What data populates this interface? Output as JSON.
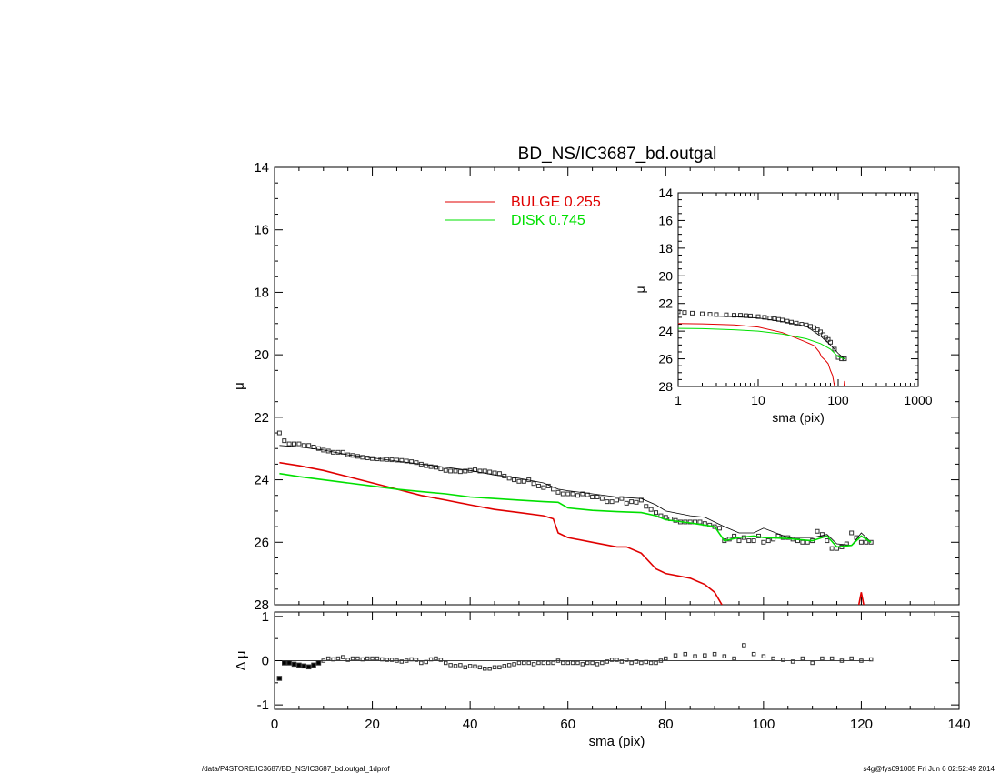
{
  "footer": {
    "left": "/data/P4STORE/IC3687/BD_NS/IC3687_bd.outgal_1dprof",
    "right": "s4g@fys091005  Fri Jun  6 02:52:49 2014"
  },
  "colors": {
    "bulge": "#e00000",
    "disk": "#00e000",
    "model": "#000000",
    "data": "#333333"
  },
  "chart_data": [
    {
      "type": "line",
      "panel": "main",
      "title": "BD_NS/IC3687_bd.outgal",
      "xlabel": "",
      "ylabel": "μ",
      "xlim": [
        0,
        140
      ],
      "ylim": [
        28,
        14
      ],
      "y_inverted": true,
      "y_ticks": [
        14,
        16,
        18,
        20,
        22,
        24,
        26,
        28
      ],
      "legend": [
        {
          "name": "BULGE",
          "value": "0.255",
          "color": "#e00000"
        },
        {
          "name": "DISK",
          "value": "0.745",
          "color": "#00e000"
        }
      ],
      "legend_position": "top-center",
      "series": [
        {
          "name": "data",
          "style": "squares",
          "x": [
            1,
            2,
            3,
            4,
            5,
            6,
            7,
            8,
            9,
            10,
            11,
            12,
            13,
            14,
            15,
            16,
            17,
            18,
            19,
            20,
            21,
            22,
            23,
            24,
            25,
            26,
            27,
            28,
            29,
            30,
            31,
            32,
            33,
            34,
            35,
            36,
            37,
            38,
            39,
            40,
            41,
            42,
            43,
            44,
            45,
            46,
            47,
            48,
            49,
            50,
            51,
            52,
            53,
            54,
            55,
            56,
            57,
            58,
            59,
            60,
            61,
            62,
            63,
            64,
            65,
            66,
            67,
            68,
            69,
            70,
            71,
            72,
            73,
            74,
            75,
            76,
            77,
            78,
            79,
            80,
            81,
            82,
            83,
            84,
            85,
            86,
            87,
            88,
            89,
            90,
            91,
            92,
            93,
            94,
            95,
            96,
            97,
            98,
            99,
            100,
            101,
            102,
            103,
            104,
            105,
            106,
            107,
            108,
            109,
            110,
            111,
            112,
            113,
            114,
            115,
            116,
            117,
            118,
            119,
            120,
            121,
            122
          ],
          "y": [
            22.5,
            22.75,
            22.85,
            22.85,
            22.85,
            22.9,
            22.9,
            22.95,
            23.0,
            23.05,
            23.08,
            23.12,
            23.12,
            23.12,
            23.2,
            23.22,
            23.25,
            23.28,
            23.3,
            23.32,
            23.33,
            23.34,
            23.35,
            23.36,
            23.37,
            23.38,
            23.4,
            23.42,
            23.45,
            23.5,
            23.55,
            23.58,
            23.6,
            23.65,
            23.7,
            23.72,
            23.72,
            23.74,
            23.72,
            23.7,
            23.68,
            23.72,
            23.72,
            23.75,
            23.78,
            23.8,
            23.88,
            23.95,
            24.0,
            24.05,
            24.05,
            24.0,
            24.12,
            24.2,
            24.25,
            24.2,
            24.3,
            24.4,
            24.45,
            24.45,
            24.45,
            24.5,
            24.45,
            24.48,
            24.55,
            24.55,
            24.6,
            24.7,
            24.7,
            24.65,
            24.6,
            24.75,
            24.7,
            24.72,
            24.65,
            24.85,
            24.95,
            25.05,
            25.15,
            25.2,
            25.25,
            25.3,
            25.35,
            25.35,
            25.35,
            25.35,
            25.35,
            25.4,
            25.45,
            25.5,
            25.55,
            25.95,
            25.9,
            25.8,
            25.95,
            25.85,
            25.95,
            25.95,
            25.8,
            26.0,
            25.95,
            25.9,
            25.8,
            25.85,
            25.85,
            25.9,
            25.95,
            26.0,
            26.0,
            25.95,
            25.65,
            25.75,
            25.95,
            26.2,
            26.2,
            26.15,
            26.05,
            25.7,
            25.85,
            26.0,
            26.0,
            26.0
          ]
        },
        {
          "name": "model",
          "color": "#000000",
          "x": [
            1,
            5,
            10,
            15,
            20,
            25,
            30,
            35,
            40,
            45,
            50,
            55,
            58,
            60,
            65,
            70,
            75,
            78,
            80,
            85,
            88,
            90,
            92,
            95,
            98,
            100,
            105,
            110,
            113,
            115,
            118,
            120,
            122
          ],
          "y": [
            22.9,
            22.95,
            23.05,
            23.2,
            23.3,
            23.4,
            23.5,
            23.6,
            23.7,
            23.85,
            23.95,
            24.1,
            24.3,
            24.35,
            24.45,
            24.55,
            24.6,
            24.8,
            25.0,
            25.15,
            25.2,
            25.35,
            25.5,
            25.7,
            25.7,
            25.55,
            25.85,
            25.85,
            25.75,
            26.05,
            26.1,
            25.7,
            26.0
          ]
        },
        {
          "name": "BULGE",
          "color": "#e00000",
          "x": [
            1,
            5,
            10,
            15,
            20,
            25,
            30,
            35,
            40,
            45,
            50,
            55,
            57,
            58,
            60,
            65,
            70,
            72,
            75,
            78,
            80,
            85,
            88,
            90,
            91.5
          ],
          "y": [
            23.45,
            23.55,
            23.7,
            23.9,
            24.1,
            24.3,
            24.5,
            24.65,
            24.8,
            24.95,
            25.05,
            25.15,
            25.25,
            25.7,
            25.85,
            26.0,
            26.15,
            26.15,
            26.35,
            26.85,
            27.0,
            27.15,
            27.35,
            27.6,
            28.0
          ]
        },
        {
          "name": "BULGE-tail",
          "color": "#e00000",
          "x": [
            119.5,
            120,
            120.5
          ],
          "y": [
            28.0,
            27.6,
            28.0
          ]
        },
        {
          "name": "DISK",
          "color": "#00e000",
          "x": [
            1,
            5,
            10,
            15,
            20,
            25,
            30,
            35,
            40,
            45,
            50,
            55,
            58,
            60,
            65,
            70,
            75,
            78,
            80,
            85,
            88,
            90,
            92,
            95,
            98,
            100,
            105,
            110,
            113,
            115,
            118,
            120,
            122
          ],
          "y": [
            23.8,
            23.9,
            24.0,
            24.1,
            24.2,
            24.3,
            24.38,
            24.45,
            24.55,
            24.6,
            24.65,
            24.7,
            24.72,
            24.9,
            24.98,
            25.02,
            25.05,
            25.15,
            25.28,
            25.38,
            25.45,
            25.5,
            25.95,
            25.85,
            25.8,
            25.85,
            25.88,
            25.95,
            25.8,
            26.15,
            26.1,
            25.8,
            26.0
          ]
        }
      ]
    },
    {
      "type": "scatter",
      "panel": "residual",
      "xlabel": "sma (pix)",
      "ylabel": "Δ μ",
      "xlim": [
        0,
        140
      ],
      "ylim": [
        -1.1,
        1.1
      ],
      "x_ticks": [
        0,
        20,
        40,
        60,
        80,
        100,
        120,
        140
      ],
      "y_ticks": [
        -1,
        0,
        1
      ],
      "zero_line": true,
      "series": [
        {
          "name": "residual",
          "x": [
            1,
            2,
            3,
            4,
            5,
            6,
            7,
            8,
            9,
            10,
            11,
            12,
            13,
            14,
            15,
            16,
            17,
            18,
            19,
            20,
            21,
            22,
            23,
            24,
            25,
            26,
            27,
            28,
            29,
            30,
            31,
            32,
            33,
            34,
            35,
            36,
            37,
            38,
            39,
            40,
            41,
            42,
            43,
            44,
            45,
            46,
            47,
            48,
            49,
            50,
            51,
            52,
            53,
            54,
            55,
            56,
            57,
            58,
            59,
            60,
            61,
            62,
            63,
            64,
            65,
            66,
            67,
            68,
            69,
            70,
            71,
            72,
            73,
            74,
            75,
            76,
            77,
            78,
            79,
            80,
            82,
            84,
            86,
            88,
            90,
            92,
            94,
            96,
            98,
            100,
            102,
            104,
            106,
            108,
            110,
            112,
            114,
            116,
            118,
            120,
            122
          ],
          "y": [
            -0.4,
            -0.05,
            -0.05,
            -0.08,
            -0.1,
            -0.12,
            -0.14,
            -0.1,
            -0.05,
            0.0,
            0.05,
            0.03,
            0.05,
            0.08,
            0.02,
            0.05,
            0.05,
            0.03,
            0.05,
            0.05,
            0.05,
            0.03,
            0.02,
            0.02,
            0.0,
            -0.02,
            0.0,
            0.03,
            0.02,
            -0.05,
            -0.03,
            0.03,
            0.05,
            0.02,
            -0.05,
            -0.1,
            -0.12,
            -0.1,
            -0.15,
            -0.12,
            -0.13,
            -0.15,
            -0.18,
            -0.18,
            -0.15,
            -0.15,
            -0.12,
            -0.1,
            -0.08,
            -0.05,
            -0.05,
            -0.05,
            -0.08,
            -0.05,
            -0.05,
            -0.05,
            -0.05,
            0.0,
            -0.05,
            -0.05,
            -0.05,
            -0.05,
            -0.08,
            -0.05,
            -0.05,
            -0.08,
            -0.05,
            -0.02,
            0.02,
            0.02,
            -0.02,
            0.02,
            -0.05,
            -0.02,
            -0.05,
            -0.03,
            -0.05,
            -0.05,
            0.0,
            0.05,
            0.12,
            0.15,
            0.1,
            0.12,
            0.15,
            0.1,
            0.05,
            0.35,
            0.15,
            0.1,
            0.05,
            0.02,
            -0.02,
            0.05,
            -0.05,
            0.05,
            0.05,
            0.0,
            0.05,
            0.0,
            0.03
          ]
        }
      ]
    },
    {
      "type": "line",
      "panel": "inset",
      "xlabel": "sma (pix)",
      "ylabel": "μ",
      "x_scale": "log",
      "xlim": [
        1,
        1000
      ],
      "ylim": [
        28,
        14
      ],
      "y_inverted": true,
      "x_ticks": [
        1,
        10,
        100,
        1000
      ],
      "y_ticks": [
        14,
        16,
        18,
        20,
        22,
        24,
        26,
        28
      ],
      "series": [
        {
          "name": "data",
          "style": "squares",
          "x": [
            1,
            1.2,
            1.5,
            2,
            2.5,
            3,
            4,
            5,
            6,
            7,
            8,
            10,
            12,
            14,
            16,
            18,
            20,
            23,
            26,
            30,
            35,
            40,
            45,
            50,
            55,
            60,
            65,
            70,
            75,
            80,
            90,
            100,
            110,
            120
          ],
          "y": [
            22.6,
            22.65,
            22.7,
            22.75,
            22.78,
            22.8,
            22.82,
            22.85,
            22.85,
            22.88,
            22.9,
            22.95,
            23.0,
            23.05,
            23.1,
            23.15,
            23.2,
            23.28,
            23.35,
            23.42,
            23.5,
            23.55,
            23.65,
            23.75,
            23.9,
            24.05,
            24.25,
            24.45,
            24.6,
            24.8,
            25.3,
            25.9,
            26.0,
            26.0
          ]
        },
        {
          "name": "model",
          "color": "#000000",
          "x": [
            1,
            2,
            5,
            10,
            20,
            40,
            60,
            80,
            100,
            120
          ],
          "y": [
            22.9,
            22.9,
            22.95,
            23.05,
            23.3,
            23.65,
            24.35,
            25.0,
            25.6,
            26.0
          ]
        },
        {
          "name": "BULGE",
          "color": "#e00000",
          "x": [
            1,
            2,
            5,
            10,
            20,
            30,
            40,
            50,
            58,
            62,
            70,
            75,
            80,
            85,
            90
          ],
          "y": [
            23.45,
            23.47,
            23.55,
            23.7,
            24.1,
            24.5,
            24.8,
            25.05,
            25.5,
            25.85,
            26.15,
            26.35,
            26.85,
            27.2,
            28.0
          ]
        },
        {
          "name": "BULGE-tail",
          "color": "#e00000",
          "x": [
            118,
            120,
            122
          ],
          "y": [
            28.0,
            27.6,
            28.0
          ]
        },
        {
          "name": "DISK",
          "color": "#00e000",
          "x": [
            1,
            2,
            5,
            10,
            20,
            40,
            60,
            80,
            100,
            120
          ],
          "y": [
            23.8,
            23.82,
            23.9,
            24.0,
            24.2,
            24.55,
            24.9,
            25.3,
            25.85,
            26.0
          ]
        }
      ]
    }
  ]
}
